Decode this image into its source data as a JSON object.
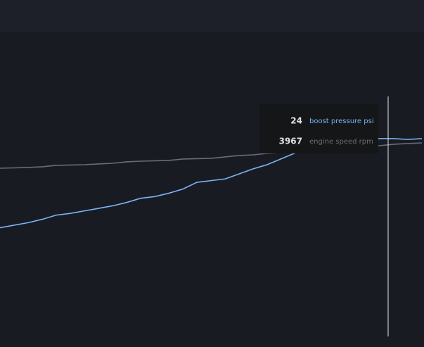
{
  "chart_data": {
    "type": "line",
    "x": [
      0,
      1,
      2,
      3,
      4,
      5,
      6,
      7,
      8,
      9,
      10,
      11,
      12,
      13,
      14,
      15,
      16,
      17,
      18,
      19,
      20,
      21,
      22,
      23,
      24,
      25,
      26,
      27,
      28,
      29,
      30
    ],
    "xlim": [
      0,
      30
    ],
    "ylim": [
      0,
      36
    ],
    "y2lim": [
      0,
      6200
    ],
    "series": [
      {
        "name": "boost pressure psi",
        "color": "#7ab3f5",
        "values": [
          13.1,
          13.4,
          13.7,
          14.1,
          14.6,
          14.8,
          15.1,
          15.4,
          15.7,
          16.1,
          16.6,
          16.8,
          17.2,
          17.7,
          18.5,
          18.7,
          18.9,
          19.5,
          20.1,
          20.6,
          21.3,
          22.0,
          22.7,
          23.2,
          23.5,
          23.7,
          23.7,
          23.7,
          23.7,
          23.6,
          23.7
        ]
      },
      {
        "name": "engine speed rpm",
        "color": "#6b6d74",
        "axis": "y2",
        "values": [
          3475,
          3482,
          3490,
          3504,
          3533,
          3540,
          3547,
          3562,
          3576,
          3605,
          3619,
          3627,
          3634,
          3663,
          3670,
          3677,
          3706,
          3735,
          3749,
          3778,
          3792,
          3821,
          3850,
          3865,
          3893,
          3908,
          3922,
          3937,
          3966,
          3980,
          3994
        ]
      }
    ],
    "tooltip": {
      "values": [
        24,
        3967
      ]
    }
  }
}
